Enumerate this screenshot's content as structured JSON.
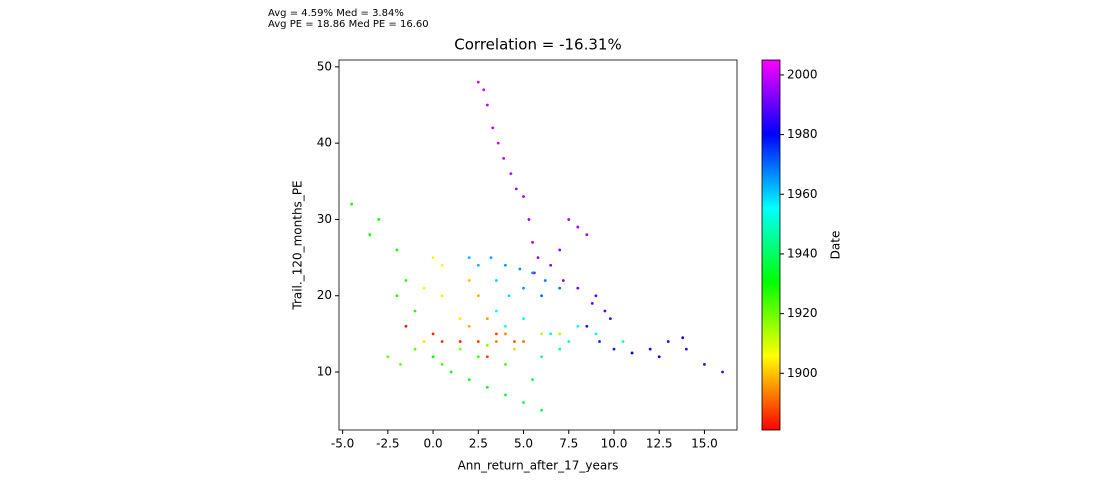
{
  "chart_data": {
    "type": "scatter",
    "annotations": [
      "Avg = 4.59%  Med = 3.84%",
      "Avg PE = 18.86  Med PE = 16.60"
    ],
    "title": "Correlation = -16.31%",
    "xlabel": "Ann_return_after_17_years",
    "ylabel": "Trail._120_months_PE",
    "clabel": "Date",
    "colormap": "gist_rainbow",
    "xlim": [
      -5.2,
      16.8
    ],
    "ylim": [
      2.4,
      50.9
    ],
    "clim": [
      1881,
      2005
    ],
    "xticks": [
      {
        "value": -5,
        "label": "-5.0"
      },
      {
        "value": -2.5,
        "label": "-2.5"
      },
      {
        "value": 0,
        "label": "0.0"
      },
      {
        "value": 2.5,
        "label": "2.5"
      },
      {
        "value": 5,
        "label": "5.0"
      },
      {
        "value": 7.5,
        "label": "7.5"
      },
      {
        "value": 10,
        "label": "10.0"
      },
      {
        "value": 12.5,
        "label": "12.5"
      },
      {
        "value": 15,
        "label": "15.0"
      }
    ],
    "yticks": [
      10,
      20,
      30,
      40,
      50
    ],
    "cticks": [
      1900,
      1920,
      1940,
      1960,
      1980,
      2000
    ],
    "x": [
      2.5,
      2.8,
      3.0,
      3.3,
      3.6,
      3.9,
      4.3,
      4.6,
      5.0,
      5.3,
      5.5,
      5.8,
      5.6,
      6.5,
      7.0,
      7.5,
      8.0,
      8.5,
      7.2,
      8.0,
      8.8,
      9.5,
      9.0,
      9.8,
      8.5,
      9.2,
      10,
      11,
      12,
      13,
      14,
      15,
      16,
      12.5,
      13.8,
      2,
      2.5,
      3.2,
      4,
      4.8,
      5.5,
      6.2,
      7,
      6,
      5,
      3.5,
      4.2,
      3.5,
      4,
      5,
      6.5,
      7.5,
      8,
      9,
      10.5,
      7,
      6,
      -2,
      -1.5,
      -2,
      -1,
      0,
      1,
      2,
      3,
      4,
      5,
      6,
      -4.5,
      -3,
      -1.8,
      -2.5,
      -1,
      0.5,
      2.5,
      4,
      5.5,
      -3.5,
      1.5,
      3,
      0,
      0.5,
      -0.5,
      0.5,
      1.5,
      -0.5,
      4.5,
      5,
      6,
      7,
      2,
      2.5,
      3,
      4,
      5,
      3.5,
      2,
      -1.5,
      0,
      0.5,
      2.5,
      3.5,
      4.5,
      1.5,
      3
    ],
    "values": [
      48,
      47,
      45,
      42,
      40,
      38,
      36,
      34,
      33,
      30,
      27,
      25,
      23,
      24,
      26,
      30,
      29,
      28,
      22,
      21,
      19,
      18,
      20,
      17,
      16,
      14,
      13,
      12.5,
      13,
      14,
      13,
      11,
      10,
      12,
      14.5,
      25,
      24,
      25,
      24,
      23.5,
      23,
      22,
      21,
      20,
      21,
      22,
      20,
      18,
      16,
      17,
      15,
      14,
      16,
      15,
      14,
      13,
      12,
      26,
      22,
      20,
      18,
      12,
      10,
      9,
      8,
      7,
      6,
      5,
      32,
      30,
      11,
      12,
      13,
      11,
      12,
      11,
      9,
      28,
      13,
      13.5,
      25,
      24,
      21,
      20,
      17,
      14,
      13,
      14,
      15,
      15,
      22,
      20,
      17,
      15,
      14,
      14,
      16,
      16,
      15,
      14,
      14,
      15,
      14,
      14,
      12
    ],
    "c": [
      2000,
      2000,
      1999,
      1999,
      1999,
      1998,
      1998,
      1997,
      1997,
      1996,
      1996,
      1995,
      1995,
      1994,
      1996,
      1997,
      1997,
      1996,
      1993,
      1992,
      1990,
      1989,
      1988,
      1987,
      1978,
      1976,
      1977,
      1980,
      1982,
      1984,
      1985,
      1986,
      1987,
      1981,
      1983,
      1962,
      1963,
      1964,
      1965,
      1966,
      1967,
      1968,
      1969,
      1970,
      1965,
      1960,
      1958,
      1955,
      1952,
      1954,
      1950,
      1948,
      1951,
      1953,
      1949,
      1947,
      1946,
      1929,
      1928,
      1927,
      1926,
      1932,
      1933,
      1934,
      1935,
      1936,
      1937,
      1938,
      1929,
      1930,
      1921,
      1920,
      1922,
      1923,
      1924,
      1925,
      1938,
      1931,
      1918,
      1917,
      1906,
      1905,
      1907,
      1908,
      1904,
      1903,
      1902,
      1910,
      1912,
      1914,
      1899,
      1898,
      1896,
      1894,
      1892,
      1893,
      1897,
      1882,
      1884,
      1885,
      1886,
      1888,
      1889,
      1883,
      1887
    ]
  }
}
